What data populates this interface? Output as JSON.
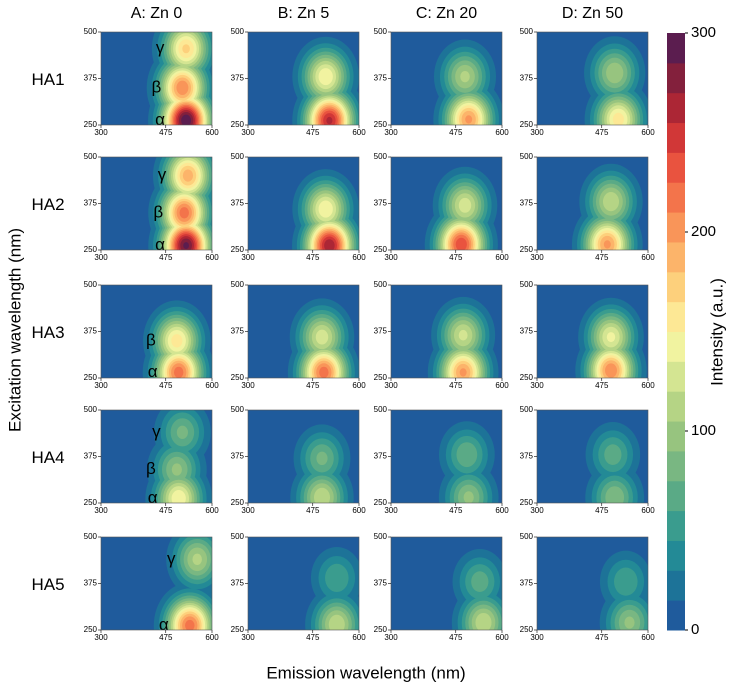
{
  "chart_data": {
    "type": "contour",
    "columns": [
      "A: Zn 0",
      "B: Zn 5",
      "C: Zn 20",
      "D: Zn 50"
    ],
    "rows": [
      "HA1",
      "HA2",
      "HA3",
      "HA4",
      "HA5"
    ],
    "xlabel": "Emission wavelength (nm)",
    "ylabel": "Excitation wavelength (nm)",
    "xlim": [
      300,
      600
    ],
    "xticks": [
      300,
      475,
      600
    ],
    "ylim": [
      250,
      500
    ],
    "yticks": [
      250,
      375,
      500
    ],
    "colorbar": {
      "label": "Intensity (a.u.)",
      "lim": [
        0,
        300
      ],
      "ticks": [
        0,
        100,
        200,
        300
      ],
      "colors": [
        "#1f5b9c",
        "#1d7398",
        "#238a96",
        "#3a9c8e",
        "#5aaa86",
        "#79b782",
        "#97c47f",
        "#b5d485",
        "#d4e592",
        "#f1f3a0",
        "#fde895",
        "#fdd07c",
        "#fcb46a",
        "#f99559",
        "#f3744b",
        "#e9533f",
        "#d13737",
        "#ac2635",
        "#83203c",
        "#5b1d4f"
      ]
    },
    "panels": [
      [
        [
          {
            "label": "α",
            "x": 530,
            "y": 262,
            "value": 300
          },
          {
            "label": "β",
            "x": 520,
            "y": 350,
            "value": 210
          },
          {
            "label": "γ",
            "x": 530,
            "y": 455,
            "value": 170
          }
        ],
        [
          {
            "x": 520,
            "y": 262,
            "value": 260
          },
          {
            "x": 510,
            "y": 380,
            "value": 150
          }
        ],
        [
          {
            "x": 510,
            "y": 265,
            "value": 200
          },
          {
            "x": 500,
            "y": 380,
            "value": 110
          }
        ],
        [
          {
            "x": 520,
            "y": 265,
            "value": 160
          },
          {
            "x": 510,
            "y": 390,
            "value": 105
          }
        ]
      ],
      [
        [
          {
            "label": "α",
            "x": 530,
            "y": 262,
            "value": 290
          },
          {
            "label": "β",
            "x": 525,
            "y": 350,
            "value": 220
          },
          {
            "label": "γ",
            "x": 535,
            "y": 450,
            "value": 190
          }
        ],
        [
          {
            "x": 520,
            "y": 262,
            "value": 270
          },
          {
            "x": 510,
            "y": 360,
            "value": 150
          }
        ],
        [
          {
            "x": 490,
            "y": 265,
            "value": 240
          },
          {
            "x": 500,
            "y": 370,
            "value": 130
          }
        ],
        [
          {
            "x": 490,
            "y": 265,
            "value": 200
          },
          {
            "x": 500,
            "y": 380,
            "value": 120
          }
        ]
      ],
      [
        [
          {
            "label": "α",
            "x": 510,
            "y": 265,
            "value": 220
          },
          {
            "label": "β",
            "x": 505,
            "y": 350,
            "value": 160
          }
        ],
        [
          {
            "x": 505,
            "y": 265,
            "value": 220
          },
          {
            "x": 500,
            "y": 360,
            "value": 130
          }
        ],
        [
          {
            "x": 495,
            "y": 265,
            "value": 200
          },
          {
            "x": 495,
            "y": 365,
            "value": 125
          }
        ],
        [
          {
            "x": 500,
            "y": 270,
            "value": 210
          },
          {
            "x": 500,
            "y": 360,
            "value": 140
          }
        ]
      ],
      [
        [
          {
            "label": "α",
            "x": 510,
            "y": 262,
            "value": 150
          },
          {
            "label": "β",
            "x": 505,
            "y": 340,
            "value": 95
          },
          {
            "label": "γ",
            "x": 520,
            "y": 440,
            "value": 80
          }
        ],
        [
          {
            "x": 500,
            "y": 265,
            "value": 120
          },
          {
            "x": 500,
            "y": 370,
            "value": 80
          }
        ],
        [
          {
            "x": 510,
            "y": 265,
            "value": 95
          },
          {
            "x": 505,
            "y": 380,
            "value": 75
          }
        ],
        [
          {
            "x": 510,
            "y": 265,
            "value": 90
          },
          {
            "x": 505,
            "y": 380,
            "value": 70
          }
        ]
      ],
      [
        [
          {
            "label": "α",
            "x": 540,
            "y": 262,
            "value": 220
          },
          {
            "label": "γ",
            "x": 560,
            "y": 440,
            "value": 110
          }
        ],
        [
          {
            "x": 540,
            "y": 265,
            "value": 120
          },
          {
            "x": 540,
            "y": 390,
            "value": 60
          }
        ],
        [
          {
            "x": 550,
            "y": 270,
            "value": 120
          },
          {
            "x": 540,
            "y": 380,
            "value": 70
          }
        ],
        [
          {
            "x": 550,
            "y": 270,
            "value": 95
          },
          {
            "x": 540,
            "y": 380,
            "value": 60
          }
        ]
      ]
    ]
  }
}
